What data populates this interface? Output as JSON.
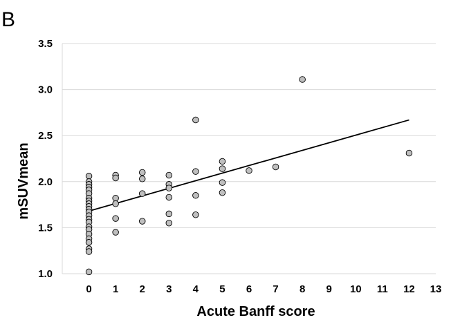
{
  "panel_label": "B",
  "chart_data": {
    "type": "scatter",
    "title": "",
    "xlabel": "Acute Banff score",
    "ylabel": "mSUVmean",
    "xlim": [
      -1,
      13
    ],
    "ylim": [
      1.0,
      3.5
    ],
    "xticks": [
      0,
      1,
      2,
      3,
      4,
      5,
      6,
      7,
      8,
      9,
      10,
      11,
      12,
      13
    ],
    "yticks": [
      1.0,
      1.5,
      2.0,
      2.5,
      3.0,
      3.5
    ],
    "ytick_labels": [
      "1.0",
      "1.5",
      "2.0",
      "2.5",
      "3.0",
      "3.5"
    ],
    "grid": "horizontal",
    "marker_color": "#bfbfbf",
    "points": [
      {
        "x": 0,
        "y": 2.06
      },
      {
        "x": 0,
        "y": 2.0
      },
      {
        "x": 0,
        "y": 1.97
      },
      {
        "x": 0,
        "y": 1.94
      },
      {
        "x": 0,
        "y": 1.91
      },
      {
        "x": 0,
        "y": 1.87
      },
      {
        "x": 0,
        "y": 1.82
      },
      {
        "x": 0,
        "y": 1.79
      },
      {
        "x": 0,
        "y": 1.76
      },
      {
        "x": 0,
        "y": 1.73
      },
      {
        "x": 0,
        "y": 1.7
      },
      {
        "x": 0,
        "y": 1.67
      },
      {
        "x": 0,
        "y": 1.63
      },
      {
        "x": 0,
        "y": 1.59
      },
      {
        "x": 0,
        "y": 1.56
      },
      {
        "x": 0,
        "y": 1.51
      },
      {
        "x": 0,
        "y": 1.48
      },
      {
        "x": 0,
        "y": 1.43
      },
      {
        "x": 0,
        "y": 1.38
      },
      {
        "x": 0,
        "y": 1.34
      },
      {
        "x": 0,
        "y": 1.27
      },
      {
        "x": 0,
        "y": 1.24
      },
      {
        "x": 0,
        "y": 1.02
      },
      {
        "x": 1,
        "y": 2.07
      },
      {
        "x": 1,
        "y": 2.04
      },
      {
        "x": 1,
        "y": 1.82
      },
      {
        "x": 1,
        "y": 1.76
      },
      {
        "x": 1,
        "y": 1.6
      },
      {
        "x": 1,
        "y": 1.45
      },
      {
        "x": 2,
        "y": 2.1
      },
      {
        "x": 2,
        "y": 2.03
      },
      {
        "x": 2,
        "y": 1.87
      },
      {
        "x": 2,
        "y": 1.57
      },
      {
        "x": 3,
        "y": 2.07
      },
      {
        "x": 3,
        "y": 1.97
      },
      {
        "x": 3,
        "y": 1.93
      },
      {
        "x": 3,
        "y": 1.83
      },
      {
        "x": 3,
        "y": 1.65
      },
      {
        "x": 3,
        "y": 1.55
      },
      {
        "x": 4,
        "y": 2.67
      },
      {
        "x": 4,
        "y": 2.11
      },
      {
        "x": 4,
        "y": 1.85
      },
      {
        "x": 4,
        "y": 1.64
      },
      {
        "x": 5,
        "y": 2.22
      },
      {
        "x": 5,
        "y": 2.14
      },
      {
        "x": 5,
        "y": 1.99
      },
      {
        "x": 5,
        "y": 1.88
      },
      {
        "x": 6,
        "y": 2.12
      },
      {
        "x": 7,
        "y": 2.16
      },
      {
        "x": 8,
        "y": 3.11
      },
      {
        "x": 12,
        "y": 2.31
      }
    ],
    "trendline": {
      "x": [
        0,
        12
      ],
      "y": [
        1.68,
        2.67
      ]
    }
  }
}
